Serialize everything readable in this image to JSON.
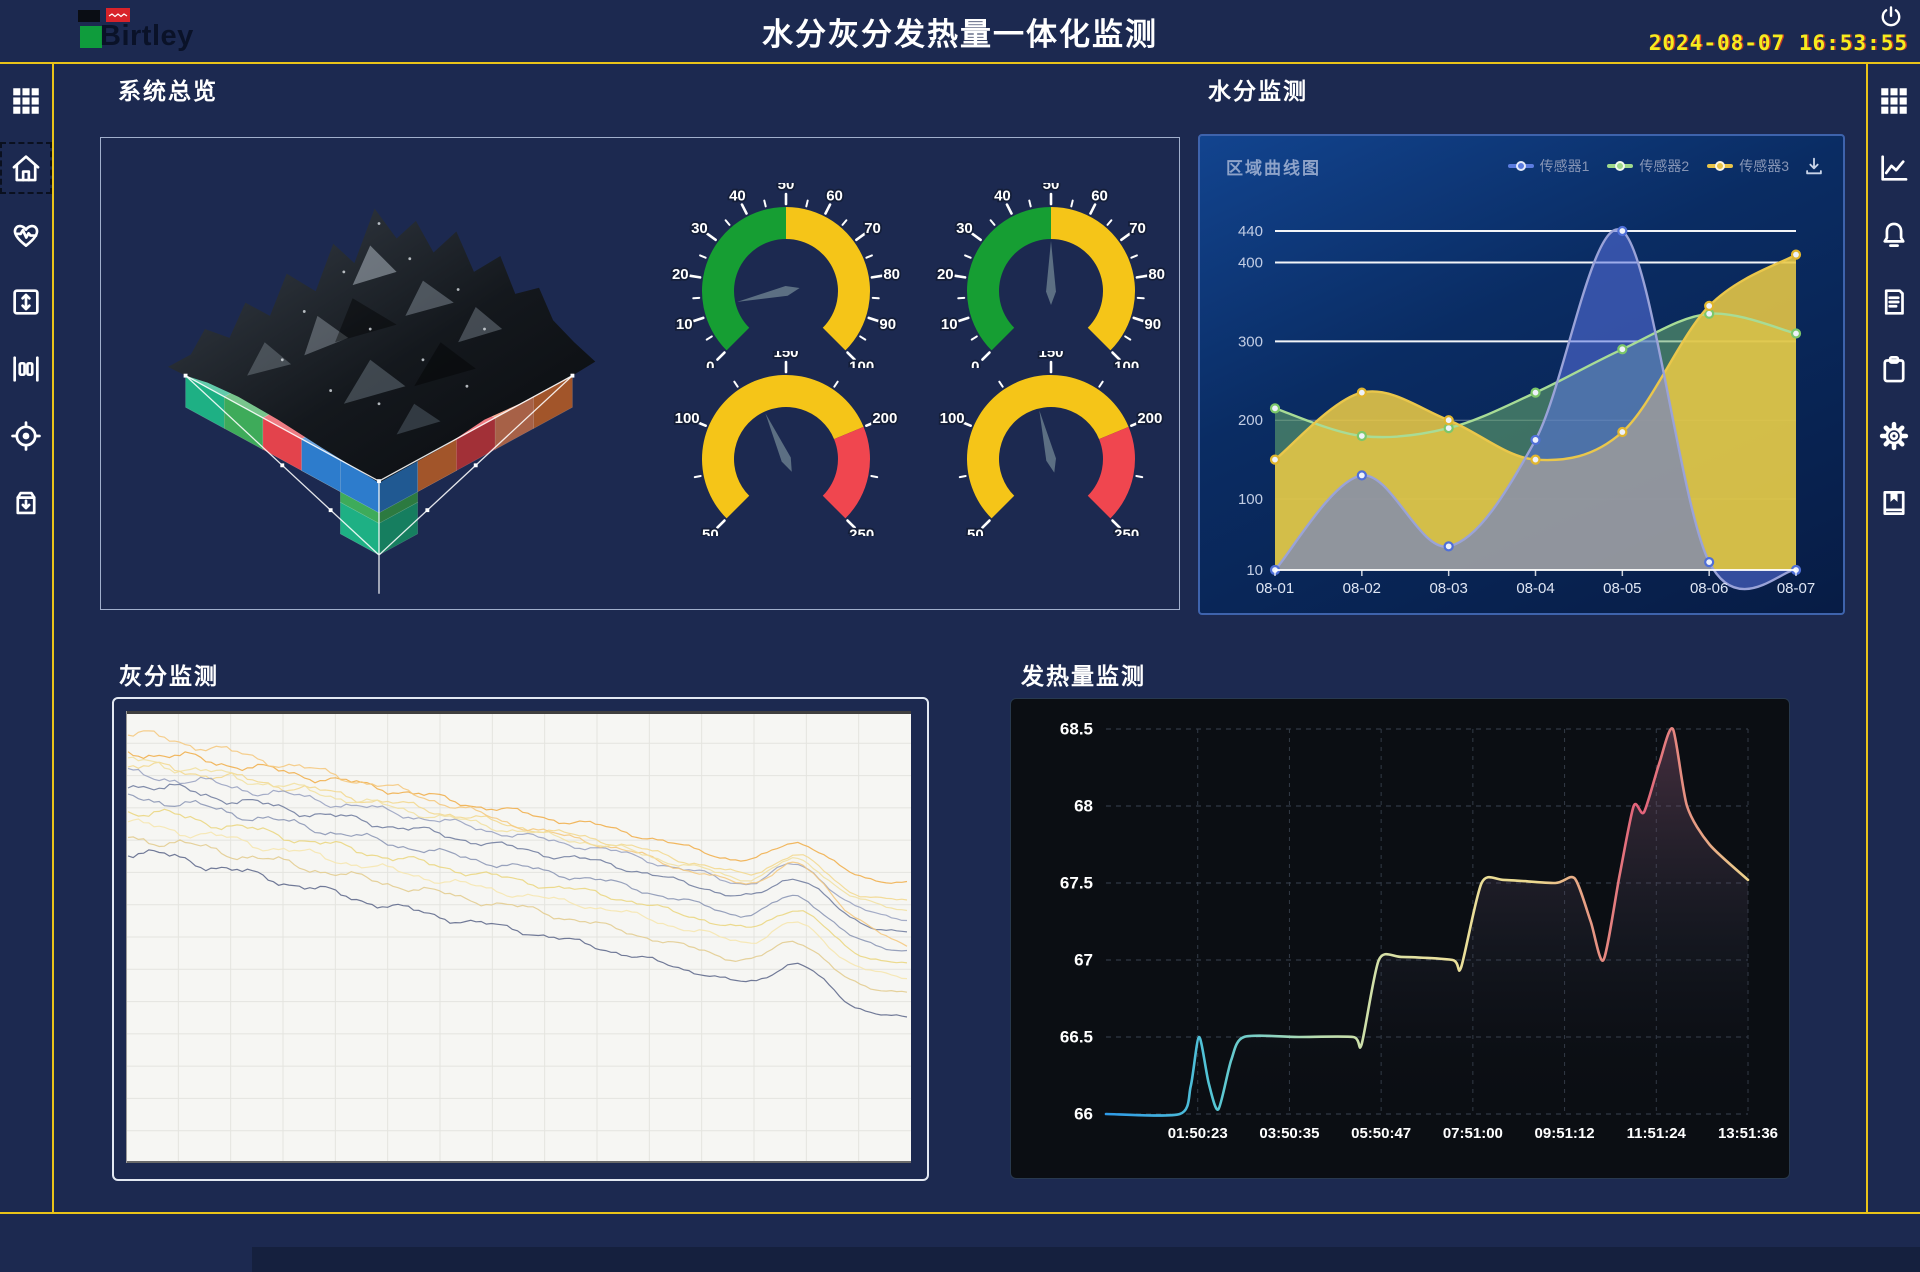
{
  "header": {
    "logo_text": "Birtley",
    "title": "水分灰分发热量一体化监测",
    "date": "2024-08-07",
    "time": "16:53:55",
    "accent_color": "#e9c319"
  },
  "sidebar_left": {
    "items": [
      {
        "icon": "grid-menu"
      },
      {
        "icon": "home",
        "active": true
      },
      {
        "icon": "heart-pulse"
      },
      {
        "icon": "expand-vertical"
      },
      {
        "icon": "gauge-bars"
      },
      {
        "icon": "target"
      },
      {
        "icon": "archive-download"
      }
    ]
  },
  "sidebar_right": {
    "items": [
      {
        "icon": "grid-menu"
      },
      {
        "icon": "line-chart"
      },
      {
        "icon": "bell"
      },
      {
        "icon": "document"
      },
      {
        "icon": "clipboard"
      },
      {
        "icon": "gear"
      },
      {
        "icon": "book-bookmark"
      }
    ]
  },
  "panels": {
    "overview": {
      "title": "系统总览"
    },
    "moisture": {
      "title": "水分监测",
      "chart_label": "区域曲线图",
      "legend": [
        {
          "label": "传感器1",
          "color": "#5b7ce0"
        },
        {
          "label": "传感器2",
          "color": "#9fd98c"
        },
        {
          "label": "传感器3",
          "color": "#e8c44a"
        }
      ]
    },
    "ash": {
      "title": "灰分监测"
    },
    "calorific": {
      "title": "发热量监测"
    }
  },
  "overview_viz": {
    "cube_colors": {
      "teal": "#1fb487",
      "green": "#3fae5c",
      "red": "#e8444e",
      "blue": "#2e7fd0",
      "yellow": "#f2c421",
      "orange": "#e8793c",
      "salmon": "#ef8a66",
      "navy": "#46526e"
    },
    "voxels": [
      {
        "i": -2,
        "j": -2,
        "k": 0,
        "c": "navy"
      },
      {
        "i": -1,
        "j": -2,
        "k": 0,
        "c": "orange"
      },
      {
        "i": 0,
        "j": -2,
        "k": 0,
        "c": "salmon"
      },
      {
        "i": 1,
        "j": -2,
        "k": 0,
        "c": "orange"
      },
      {
        "i": 2,
        "j": -2,
        "k": 0,
        "c": "orange"
      },
      {
        "i": -2,
        "j": -1,
        "k": 0,
        "c": "teal"
      },
      {
        "i": -2,
        "j": 0,
        "k": 0,
        "c": "red"
      },
      {
        "i": -2,
        "j": 1,
        "k": 0,
        "c": "teal"
      },
      {
        "i": 2,
        "j": -1,
        "k": 0,
        "c": "salmon"
      },
      {
        "i": 2,
        "j": 0,
        "k": 0,
        "c": "red"
      },
      {
        "i": 2,
        "j": 1,
        "k": 0,
        "c": "orange"
      },
      {
        "i": -2,
        "j": 2,
        "k": 0,
        "c": "teal"
      },
      {
        "i": -1,
        "j": 2,
        "k": 0,
        "c": "green"
      },
      {
        "i": 0,
        "j": 2,
        "k": 0,
        "c": "red"
      },
      {
        "i": 1,
        "j": 2,
        "k": 0,
        "c": "blue"
      },
      {
        "i": 2,
        "j": 2,
        "k": 0,
        "c": "blue"
      },
      {
        "i": -1,
        "j": -1,
        "k": 1,
        "c": "blue"
      },
      {
        "i": 0,
        "j": -1,
        "k": 1,
        "c": "orange"
      },
      {
        "i": 1,
        "j": -1,
        "k": 1,
        "c": "orange"
      },
      {
        "i": -1,
        "j": 0,
        "k": 1,
        "c": "teal"
      },
      {
        "i": 0,
        "j": 0,
        "k": 1,
        "c": "blue"
      },
      {
        "i": 1,
        "j": 0,
        "k": 1,
        "c": "orange"
      },
      {
        "i": -1,
        "j": 1,
        "k": 1,
        "c": "red"
      },
      {
        "i": 0,
        "j": 1,
        "k": 1,
        "c": "yellow"
      },
      {
        "i": 1,
        "j": 1,
        "k": 1,
        "c": "blue"
      },
      {
        "i": -0.5,
        "j": -0.5,
        "k": 2,
        "c": "green"
      },
      {
        "i": 0.5,
        "j": -0.5,
        "k": 2,
        "c": "orange"
      },
      {
        "i": -0.5,
        "j": 0.5,
        "k": 2,
        "c": "yellow"
      },
      {
        "i": 0.5,
        "j": 0.5,
        "k": 2,
        "c": "blue"
      },
      {
        "i": 0,
        "j": 0,
        "k": 3,
        "c": "green"
      },
      {
        "i": 0,
        "j": 0,
        "k": 4,
        "c": "teal"
      }
    ]
  },
  "chart_data": [
    {
      "id": "moisture",
      "type": "area",
      "title": "区域曲线图",
      "categories": [
        "08-01",
        "08-02",
        "08-03",
        "08-04",
        "08-05",
        "08-06",
        "08-07"
      ],
      "ylim": [
        10,
        440
      ],
      "yticks": [
        {
          "v": 440,
          "strong": true
        },
        {
          "v": 400,
          "strong": true
        },
        {
          "v": 300,
          "strong": true
        },
        {
          "v": 200,
          "strong": false
        },
        {
          "v": 100,
          "strong": false
        },
        {
          "v": 10,
          "strong": false,
          "label_only": true
        }
      ],
      "legend_position": "top-right",
      "series": [
        {
          "name": "传感器2",
          "line": "#a8dc96",
          "dot": "#7cc76a",
          "fill": "rgba(105,175,110,0.55)",
          "values": [
            215,
            180,
            190,
            235,
            290,
            335,
            310
          ]
        },
        {
          "name": "传感器3",
          "line": "#eac74b",
          "dot": "#e0b52e",
          "fill": "rgba(232,200,70,0.88)",
          "values": [
            150,
            235,
            200,
            150,
            185,
            345,
            410
          ]
        },
        {
          "name": "传感器1",
          "line": "#9aa3d8",
          "dot": "#4f6fd8",
          "fill": "rgba(90,115,225,0.55)",
          "values": [
            10,
            130,
            40,
            175,
            440,
            20,
            10
          ]
        }
      ]
    },
    {
      "id": "gauges",
      "type": "gauge",
      "items": [
        {
          "min": 0,
          "max": 100,
          "value": 12,
          "label_step": 10,
          "minor_step": 5,
          "bands": [
            {
              "to": 50,
              "color": "#169e33"
            },
            {
              "to": 100,
              "color": "#f5c518"
            }
          ]
        },
        {
          "min": 0,
          "max": 100,
          "value": 50,
          "label_step": 10,
          "minor_step": 5,
          "bands": [
            {
              "to": 50,
              "color": "#169e33"
            },
            {
              "to": 100,
              "color": "#f5c518"
            }
          ]
        },
        {
          "min": 50,
          "max": 250,
          "value": 132,
          "label_step": 50,
          "minor_step": 25,
          "bands": [
            {
              "to": 200,
              "color": "#f5c518"
            },
            {
              "to": 250,
              "color": "#f0464f"
            }
          ]
        },
        {
          "min": 50,
          "max": 250,
          "value": 140,
          "label_step": 50,
          "minor_step": 25,
          "bands": [
            {
              "to": 200,
              "color": "#f5c518"
            },
            {
              "to": 250,
              "color": "#f0464f"
            }
          ]
        }
      ]
    },
    {
      "id": "ash",
      "type": "line",
      "background": "#f6f6f3",
      "grid": true,
      "x_anchors": [
        0,
        0.18,
        0.36,
        0.52,
        0.62,
        0.74,
        0.8,
        0.86,
        0.93,
        1
      ],
      "series": [
        {
          "color": "#f0ae4a",
          "values": [
            9,
            13,
            18,
            23,
            26,
            31,
            33,
            29,
            36,
            38
          ]
        },
        {
          "color": "#f3d88e",
          "values": [
            12,
            16,
            21,
            26,
            29,
            34,
            36,
            32,
            40,
            42
          ]
        },
        {
          "color": "#98a2c0",
          "values": [
            14,
            18,
            23,
            28,
            31,
            36,
            38,
            34,
            43,
            46
          ]
        },
        {
          "color": "#707c9e",
          "values": [
            16,
            21,
            26,
            31,
            34,
            39,
            41,
            37,
            46,
            49
          ]
        },
        {
          "color": "#f5c87e",
          "values": [
            5,
            11,
            18,
            26,
            30,
            36,
            38,
            34,
            45,
            52
          ]
        },
        {
          "color": "#8a95b4",
          "values": [
            19,
            24,
            30,
            35,
            38,
            43,
            45,
            41,
            50,
            53
          ]
        },
        {
          "color": "#ead680",
          "values": [
            22,
            27,
            33,
            38,
            41,
            46,
            48,
            44,
            53,
            56
          ]
        },
        {
          "color": "#f6e6ae",
          "values": [
            25,
            30,
            36,
            41,
            44,
            49,
            51,
            47,
            56,
            59
          ]
        },
        {
          "color": "#e2cc8e",
          "values": [
            28,
            33,
            39,
            44,
            48,
            53,
            55,
            51,
            60,
            62
          ]
        },
        {
          "color": "#5d688a",
          "values": [
            31,
            37,
            44,
            49,
            53,
            58,
            60,
            56,
            65,
            68
          ]
        },
        {
          "color": "#f1e0a0",
          "values": [
            11,
            16,
            22,
            27,
            30,
            35,
            37,
            33,
            41,
            44
          ]
        }
      ]
    },
    {
      "id": "calorific",
      "type": "line",
      "ylim": [
        66,
        68.5
      ],
      "yticks": [
        "66",
        "66.5",
        "67",
        "67.5",
        "68",
        "68.5"
      ],
      "x_ticks": [
        "01:50:23",
        "03:50:35",
        "05:50:47",
        "07:51:00",
        "09:51:12",
        "11:51:24",
        "13:51:36"
      ],
      "grid_dashed": true,
      "line_gradient": [
        "#2e9ae8",
        "#55c6d4",
        "#b9ddb0",
        "#e9e2a0",
        "#ecd98e",
        "#e2607a",
        "#ecd38c"
      ],
      "points": [
        [
          0,
          66
        ],
        [
          0.115,
          66
        ],
        [
          0.132,
          66.18
        ],
        [
          0.145,
          66.5
        ],
        [
          0.16,
          66.2
        ],
        [
          0.175,
          66.03
        ],
        [
          0.195,
          66.35
        ],
        [
          0.215,
          66.5
        ],
        [
          0.3,
          66.5
        ],
        [
          0.385,
          66.5
        ],
        [
          0.398,
          66.45
        ],
        [
          0.425,
          67.0
        ],
        [
          0.46,
          67.02
        ],
        [
          0.54,
          67.0
        ],
        [
          0.553,
          66.95
        ],
        [
          0.585,
          67.5
        ],
        [
          0.62,
          67.52
        ],
        [
          0.7,
          67.5
        ],
        [
          0.73,
          67.53
        ],
        [
          0.755,
          67.25
        ],
        [
          0.775,
          67.0
        ],
        [
          0.8,
          67.55
        ],
        [
          0.822,
          68.0
        ],
        [
          0.838,
          67.96
        ],
        [
          0.862,
          68.28
        ],
        [
          0.883,
          68.5
        ],
        [
          0.905,
          68.0
        ],
        [
          0.94,
          67.75
        ],
        [
          1,
          67.52
        ]
      ]
    }
  ]
}
